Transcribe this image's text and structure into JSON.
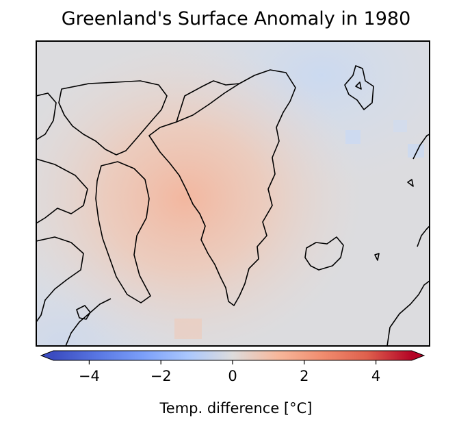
{
  "chart_data": {
    "type": "heatmap",
    "title": "Greenland's Surface Anomaly in 1980",
    "colorbar": {
      "label": "Temp. difference [°C]",
      "range": [
        -5,
        5
      ],
      "ticks": [
        -4,
        -2,
        0,
        2,
        4
      ],
      "tick_labels": [
        "−4",
        "−2",
        "0",
        "2",
        "4"
      ],
      "colormap": "coolwarm",
      "extend": "both"
    },
    "map": {
      "region": "Greenland and surrounding Arctic",
      "projection": "stereographic",
      "warm_center_value": 1.5,
      "periphery_value": 0,
      "northeast_value": -0.6,
      "southwest_value": -0.7
    }
  }
}
